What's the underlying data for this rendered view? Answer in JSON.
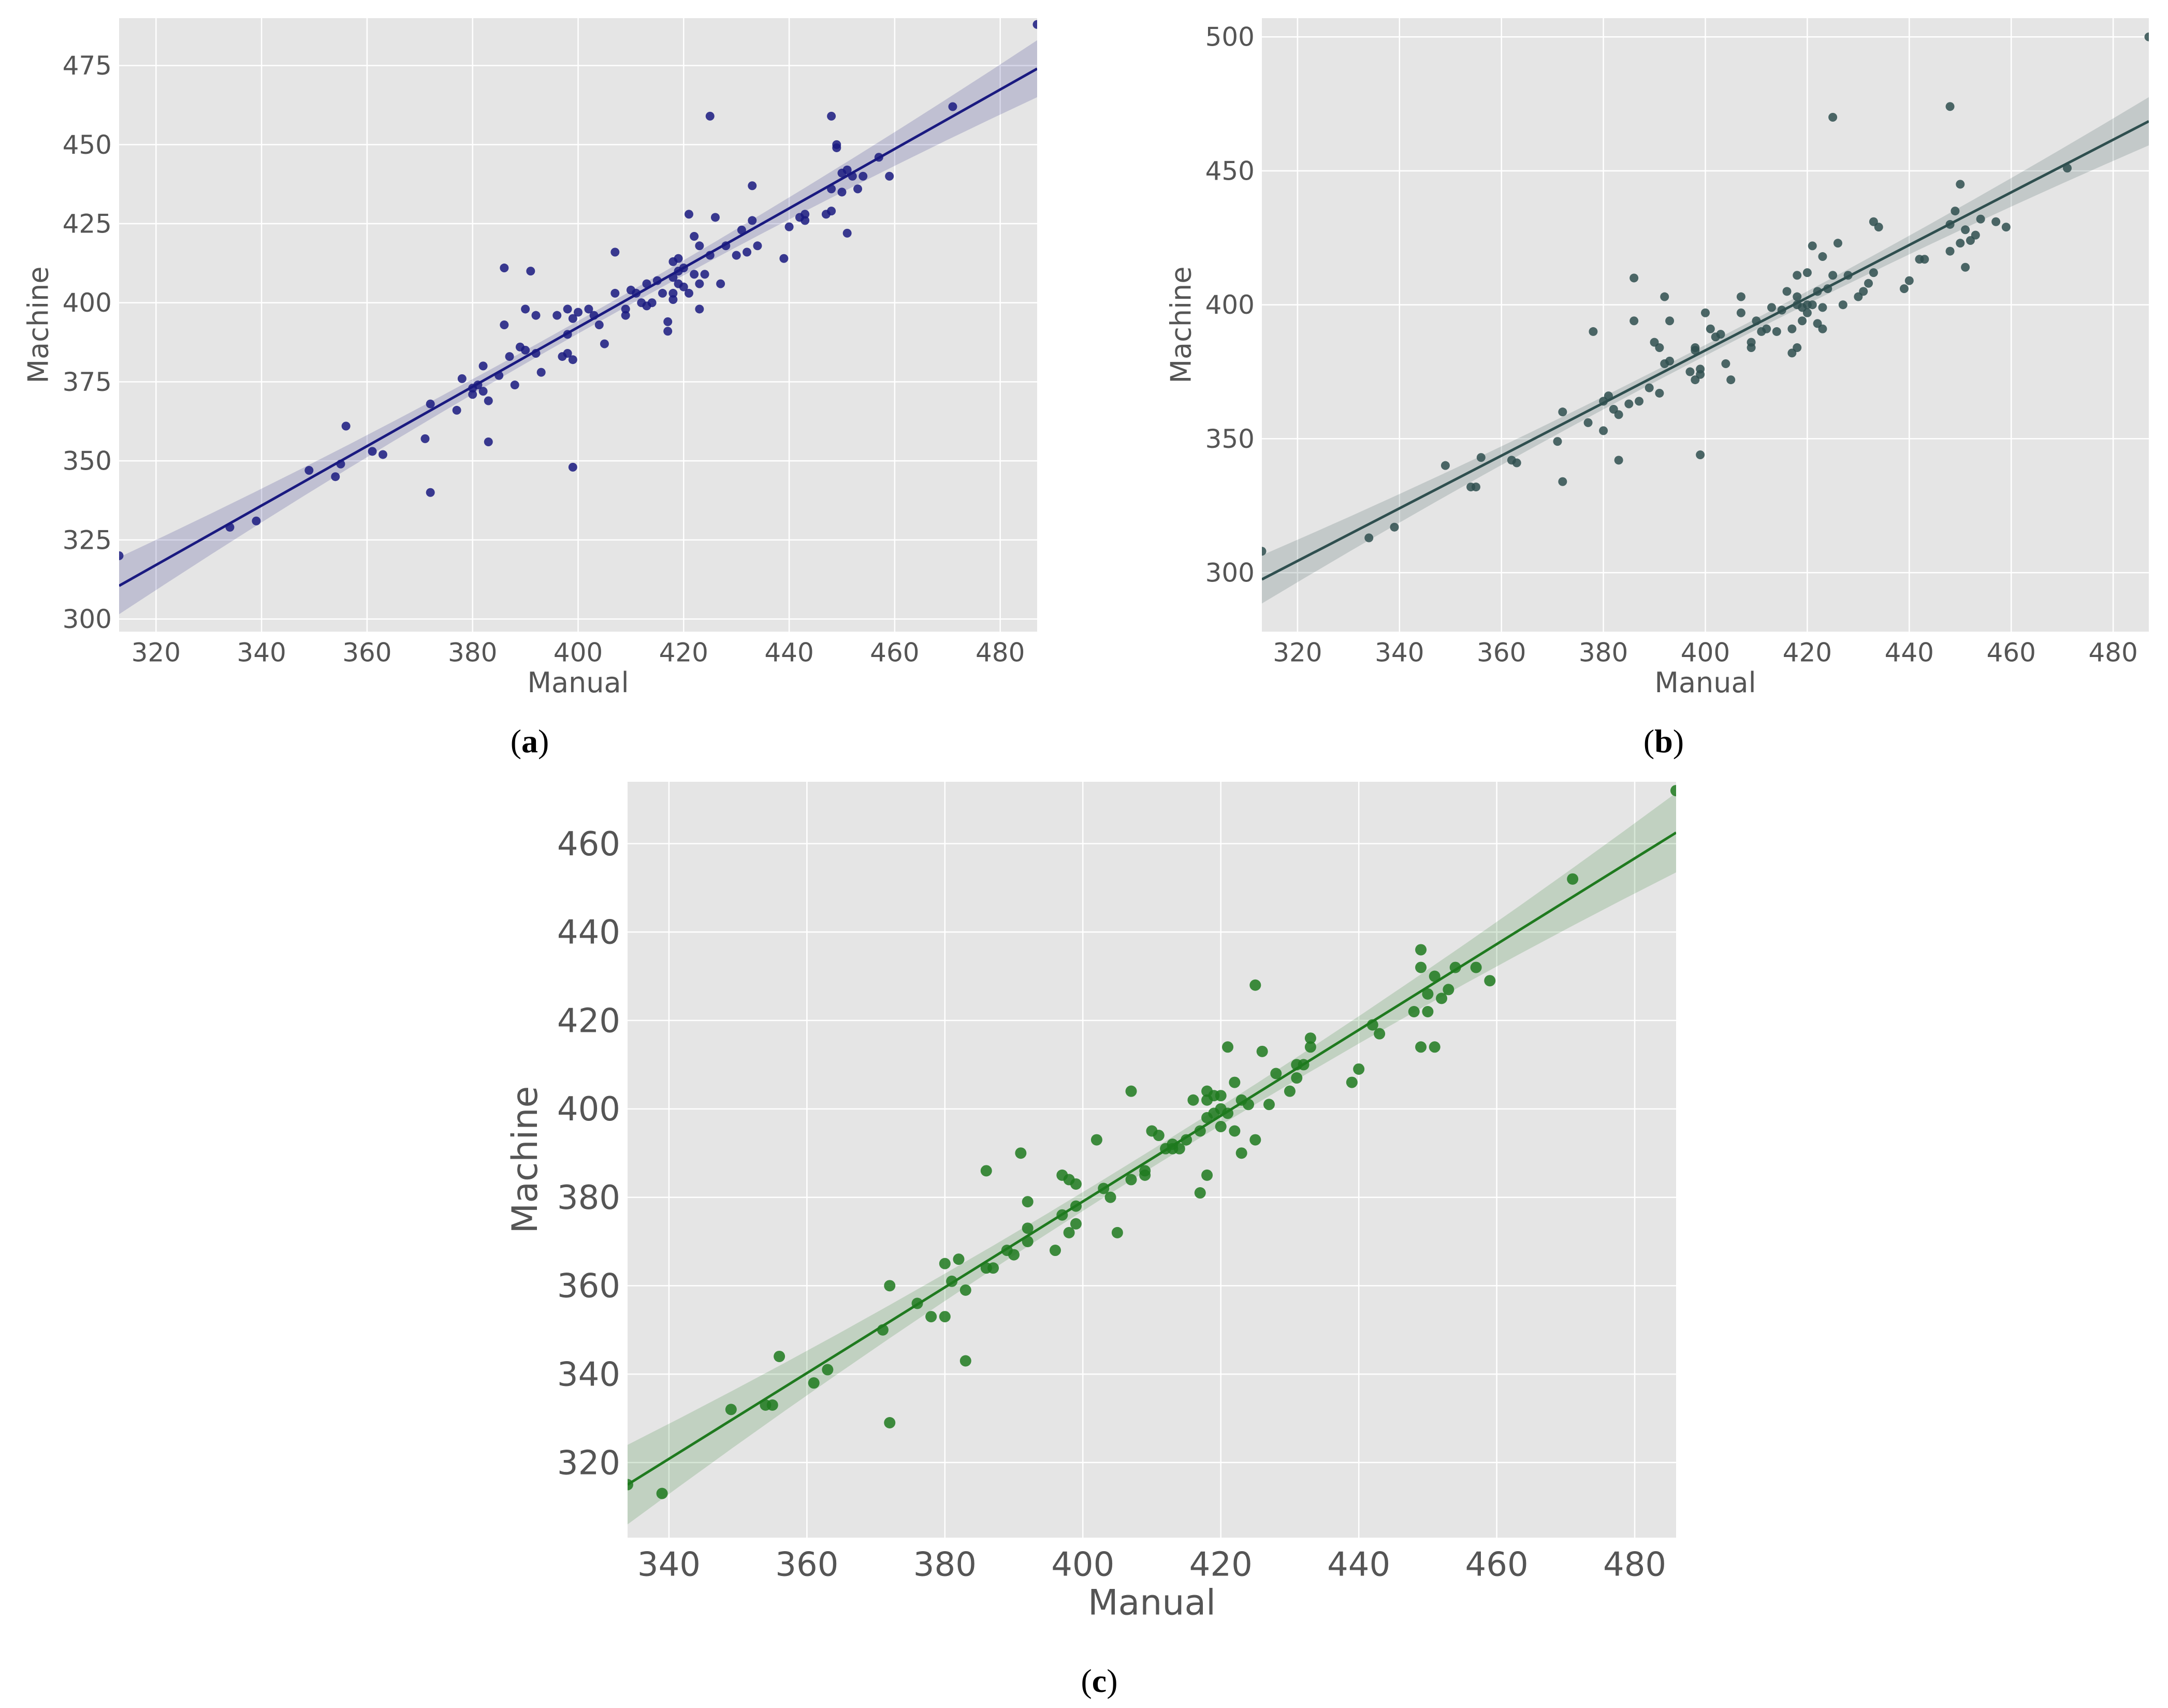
{
  "figure": {
    "background": "#ffffff",
    "panel_background": "#e5e5e5",
    "grid_color": "#ffffff",
    "tick_label_color": "#555555"
  },
  "captions": [
    {
      "open": "(",
      "letter": "a",
      "close": ")"
    },
    {
      "open": "(",
      "letter": "b",
      "close": ")"
    },
    {
      "open": "(",
      "letter": "c",
      "close": ")"
    }
  ],
  "chart_data": [
    {
      "type": "scatter",
      "panel": "a",
      "title": "",
      "xlabel": "Manual",
      "ylabel": "Machine",
      "xlim": [
        313,
        487
      ],
      "ylim": [
        296,
        490
      ],
      "xticks": [
        320,
        340,
        360,
        380,
        400,
        420,
        440,
        460,
        480
      ],
      "yticks": [
        300,
        325,
        350,
        375,
        400,
        425,
        450,
        475
      ],
      "grid": true,
      "color": "#1a1a80",
      "regression": {
        "x": [
          313,
          487
        ],
        "y": [
          310.5,
          474.0
        ]
      },
      "points": [
        [
          313,
          320
        ],
        [
          334,
          329
        ],
        [
          339,
          331
        ],
        [
          349,
          347
        ],
        [
          354,
          345
        ],
        [
          355,
          349
        ],
        [
          356,
          361
        ],
        [
          361,
          353
        ],
        [
          363,
          352
        ],
        [
          371,
          357
        ],
        [
          372,
          368
        ],
        [
          372,
          340
        ],
        [
          377,
          366
        ],
        [
          378,
          376
        ],
        [
          380,
          373
        ],
        [
          380,
          371
        ],
        [
          381,
          374
        ],
        [
          382,
          372
        ],
        [
          382,
          380
        ],
        [
          383,
          356
        ],
        [
          383,
          369
        ],
        [
          385,
          377
        ],
        [
          386,
          393
        ],
        [
          386,
          411
        ],
        [
          387,
          383
        ],
        [
          388,
          374
        ],
        [
          389,
          386
        ],
        [
          390,
          385
        ],
        [
          390,
          398
        ],
        [
          391,
          410
        ],
        [
          392,
          384
        ],
        [
          392,
          396
        ],
        [
          393,
          378
        ],
        [
          396,
          396
        ],
        [
          397,
          383
        ],
        [
          398,
          390
        ],
        [
          398,
          398
        ],
        [
          398,
          384
        ],
        [
          399,
          395
        ],
        [
          399,
          382
        ],
        [
          399,
          348
        ],
        [
          400,
          397
        ],
        [
          402,
          398
        ],
        [
          403,
          396
        ],
        [
          404,
          393
        ],
        [
          405,
          387
        ],
        [
          407,
          403
        ],
        [
          407,
          416
        ],
        [
          409,
          398
        ],
        [
          409,
          396
        ],
        [
          410,
          404
        ],
        [
          411,
          403
        ],
        [
          412,
          400
        ],
        [
          413,
          406
        ],
        [
          413,
          399
        ],
        [
          414,
          400
        ],
        [
          415,
          407
        ],
        [
          416,
          403
        ],
        [
          417,
          394
        ],
        [
          417,
          391
        ],
        [
          418,
          408
        ],
        [
          418,
          401
        ],
        [
          418,
          403
        ],
        [
          418,
          413
        ],
        [
          419,
          410
        ],
        [
          419,
          406
        ],
        [
          419,
          414
        ],
        [
          420,
          405
        ],
        [
          420,
          411
        ],
        [
          421,
          428
        ],
        [
          421,
          403
        ],
        [
          422,
          421
        ],
        [
          422,
          409
        ],
        [
          423,
          406
        ],
        [
          423,
          418
        ],
        [
          423,
          398
        ],
        [
          424,
          409
        ],
        [
          425,
          459
        ],
        [
          425,
          415
        ],
        [
          426,
          427
        ],
        [
          427,
          406
        ],
        [
          428,
          418
        ],
        [
          430,
          415
        ],
        [
          431,
          423
        ],
        [
          432,
          416
        ],
        [
          433,
          437
        ],
        [
          433,
          426
        ],
        [
          434,
          418
        ],
        [
          439,
          414
        ],
        [
          440,
          424
        ],
        [
          442,
          427
        ],
        [
          443,
          428
        ],
        [
          443,
          426
        ],
        [
          447,
          428
        ],
        [
          448,
          429
        ],
        [
          448,
          436
        ],
        [
          448,
          459
        ],
        [
          449,
          449
        ],
        [
          449,
          450
        ],
        [
          450,
          435
        ],
        [
          450,
          441
        ],
        [
          451,
          442
        ],
        [
          451,
          422
        ],
        [
          452,
          440
        ],
        [
          453,
          436
        ],
        [
          454,
          440
        ],
        [
          457,
          446
        ],
        [
          459,
          440
        ],
        [
          471,
          462
        ],
        [
          487,
          488
        ]
      ]
    },
    {
      "type": "scatter",
      "panel": "b",
      "title": "",
      "xlabel": "Manual",
      "ylabel": "Machine",
      "xlim": [
        313,
        487
      ],
      "ylim": [
        278,
        507
      ],
      "xticks": [
        320,
        340,
        360,
        380,
        400,
        420,
        440,
        460,
        480
      ],
      "yticks": [
        300,
        350,
        400,
        450,
        500
      ],
      "grid": true,
      "color": "#2f4f4f",
      "regression": {
        "x": [
          313,
          487
        ],
        "y": [
          297.5,
          468.5
        ]
      },
      "points": [
        [
          313,
          308
        ],
        [
          334,
          313
        ],
        [
          339,
          317
        ],
        [
          349,
          340
        ],
        [
          354,
          332
        ],
        [
          355,
          332
        ],
        [
          356,
          343
        ],
        [
          362,
          342
        ],
        [
          363,
          341
        ],
        [
          371,
          349
        ],
        [
          372,
          360
        ],
        [
          372,
          334
        ],
        [
          377,
          356
        ],
        [
          378,
          390
        ],
        [
          380,
          364
        ],
        [
          380,
          353
        ],
        [
          381,
          366
        ],
        [
          382,
          361
        ],
        [
          383,
          342
        ],
        [
          383,
          359
        ],
        [
          385,
          363
        ],
        [
          386,
          410
        ],
        [
          386,
          394
        ],
        [
          387,
          364
        ],
        [
          389,
          369
        ],
        [
          390,
          386
        ],
        [
          391,
          384
        ],
        [
          391,
          367
        ],
        [
          392,
          403
        ],
        [
          392,
          378
        ],
        [
          393,
          379
        ],
        [
          393,
          394
        ],
        [
          397,
          375
        ],
        [
          398,
          384
        ],
        [
          398,
          372
        ],
        [
          398,
          383
        ],
        [
          399,
          374
        ],
        [
          399,
          376
        ],
        [
          399,
          344
        ],
        [
          400,
          397
        ],
        [
          401,
          391
        ],
        [
          402,
          388
        ],
        [
          403,
          389
        ],
        [
          404,
          378
        ],
        [
          405,
          372
        ],
        [
          407,
          403
        ],
        [
          407,
          397
        ],
        [
          409,
          386
        ],
        [
          409,
          384
        ],
        [
          410,
          394
        ],
        [
          411,
          390
        ],
        [
          412,
          391
        ],
        [
          413,
          399
        ],
        [
          414,
          390
        ],
        [
          415,
          398
        ],
        [
          416,
          405
        ],
        [
          417,
          391
        ],
        [
          417,
          382
        ],
        [
          418,
          384
        ],
        [
          418,
          403
        ],
        [
          418,
          400
        ],
        [
          418,
          411
        ],
        [
          419,
          394
        ],
        [
          419,
          399
        ],
        [
          420,
          397
        ],
        [
          420,
          400
        ],
        [
          420,
          412
        ],
        [
          421,
          400
        ],
        [
          421,
          422
        ],
        [
          422,
          405
        ],
        [
          422,
          393
        ],
        [
          423,
          399
        ],
        [
          423,
          418
        ],
        [
          423,
          391
        ],
        [
          424,
          406
        ],
        [
          425,
          470
        ],
        [
          425,
          411
        ],
        [
          426,
          423
        ],
        [
          427,
          400
        ],
        [
          428,
          411
        ],
        [
          430,
          403
        ],
        [
          431,
          405
        ],
        [
          432,
          408
        ],
        [
          433,
          431
        ],
        [
          433,
          412
        ],
        [
          434,
          429
        ],
        [
          439,
          406
        ],
        [
          440,
          409
        ],
        [
          442,
          417
        ],
        [
          443,
          417
        ],
        [
          448,
          420
        ],
        [
          448,
          430
        ],
        [
          448,
          474
        ],
        [
          449,
          435
        ],
        [
          450,
          423
        ],
        [
          450,
          445
        ],
        [
          451,
          414
        ],
        [
          451,
          428
        ],
        [
          452,
          424
        ],
        [
          453,
          426
        ],
        [
          454,
          432
        ],
        [
          457,
          431
        ],
        [
          459,
          429
        ],
        [
          471,
          451
        ],
        [
          487,
          500
        ]
      ]
    },
    {
      "type": "scatter",
      "panel": "c",
      "title": "",
      "xlabel": "Manual",
      "ylabel": "Machine",
      "xlim": [
        334,
        486
      ],
      "ylim": [
        303,
        474
      ],
      "xticks": [
        340,
        360,
        380,
        400,
        420,
        440,
        460,
        480
      ],
      "yticks": [
        320,
        340,
        360,
        380,
        400,
        420,
        440,
        460
      ],
      "grid": true,
      "color": "#1f7a1f",
      "regression": {
        "x": [
          334,
          486
        ],
        "y": [
          315.0,
          462.5
        ]
      },
      "points": [
        [
          334,
          315
        ],
        [
          339,
          313
        ],
        [
          349,
          332
        ],
        [
          354,
          333
        ],
        [
          355,
          333
        ],
        [
          356,
          344
        ],
        [
          361,
          338
        ],
        [
          363,
          341
        ],
        [
          371,
          350
        ],
        [
          372,
          360
        ],
        [
          372,
          329
        ],
        [
          376,
          356
        ],
        [
          378,
          353
        ],
        [
          380,
          365
        ],
        [
          380,
          353
        ],
        [
          381,
          361
        ],
        [
          382,
          366
        ],
        [
          383,
          359
        ],
        [
          383,
          343
        ],
        [
          386,
          386
        ],
        [
          386,
          364
        ],
        [
          387,
          364
        ],
        [
          389,
          368
        ],
        [
          390,
          367
        ],
        [
          391,
          390
        ],
        [
          392,
          379
        ],
        [
          392,
          370
        ],
        [
          392,
          373
        ],
        [
          396,
          368
        ],
        [
          397,
          376
        ],
        [
          397,
          385
        ],
        [
          398,
          372
        ],
        [
          398,
          384
        ],
        [
          399,
          383
        ],
        [
          399,
          378
        ],
        [
          399,
          374
        ],
        [
          402,
          393
        ],
        [
          403,
          382
        ],
        [
          404,
          380
        ],
        [
          405,
          372
        ],
        [
          407,
          404
        ],
        [
          407,
          384
        ],
        [
          409,
          385
        ],
        [
          409,
          386
        ],
        [
          410,
          395
        ],
        [
          411,
          394
        ],
        [
          412,
          391
        ],
        [
          413,
          391
        ],
        [
          413,
          392
        ],
        [
          414,
          391
        ],
        [
          415,
          393
        ],
        [
          416,
          402
        ],
        [
          417,
          381
        ],
        [
          417,
          395
        ],
        [
          418,
          398
        ],
        [
          418,
          385
        ],
        [
          418,
          402
        ],
        [
          418,
          404
        ],
        [
          419,
          403
        ],
        [
          419,
          399
        ],
        [
          420,
          396
        ],
        [
          420,
          400
        ],
        [
          420,
          403
        ],
        [
          421,
          399
        ],
        [
          421,
          414
        ],
        [
          422,
          395
        ],
        [
          422,
          406
        ],
        [
          423,
          390
        ],
        [
          423,
          402
        ],
        [
          424,
          401
        ],
        [
          425,
          428
        ],
        [
          425,
          393
        ],
        [
          426,
          413
        ],
        [
          427,
          401
        ],
        [
          428,
          408
        ],
        [
          430,
          404
        ],
        [
          431,
          407
        ],
        [
          431,
          410
        ],
        [
          432,
          410
        ],
        [
          433,
          416
        ],
        [
          433,
          414
        ],
        [
          439,
          406
        ],
        [
          440,
          409
        ],
        [
          442,
          419
        ],
        [
          443,
          417
        ],
        [
          448,
          422
        ],
        [
          449,
          414
        ],
        [
          449,
          432
        ],
        [
          449,
          436
        ],
        [
          450,
          426
        ],
        [
          450,
          422
        ],
        [
          451,
          414
        ],
        [
          451,
          430
        ],
        [
          452,
          425
        ],
        [
          453,
          427
        ],
        [
          454,
          432
        ],
        [
          457,
          432
        ],
        [
          459,
          429
        ],
        [
          471,
          452
        ],
        [
          486,
          472
        ]
      ]
    }
  ]
}
